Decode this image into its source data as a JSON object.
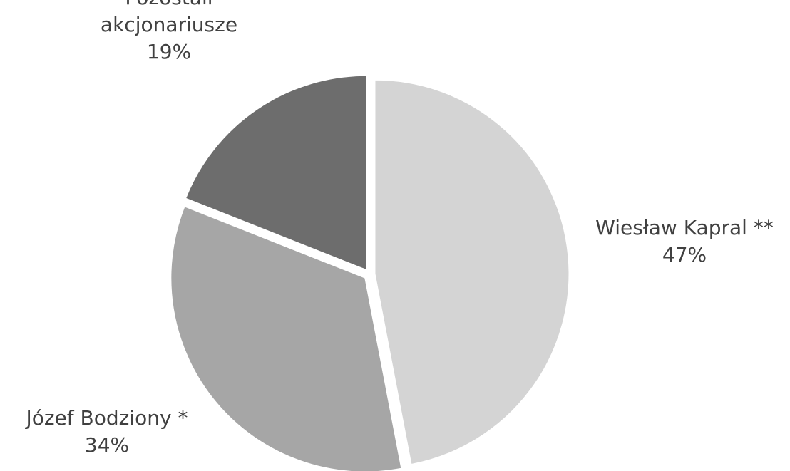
{
  "chart_data": {
    "type": "pie",
    "title": "",
    "slices": [
      {
        "label_lines": [
          "Wiesław Kapral **"
        ],
        "value": 47,
        "value_label": "47%",
        "color": "#d4d4d4",
        "label_pos": "right"
      },
      {
        "label_lines": [
          "Józef Bodziony *"
        ],
        "value": 34,
        "value_label": "34%",
        "color": "#a6a6a6",
        "label_pos": "bottom-left"
      },
      {
        "label_lines": [
          "Pozostali",
          "akcjonariusze"
        ],
        "value": 19,
        "value_label": "19%",
        "color": "#6d6d6d",
        "label_pos": "top"
      }
    ],
    "start_angle_deg": 0,
    "direction": "clockwise",
    "exploded": true
  }
}
